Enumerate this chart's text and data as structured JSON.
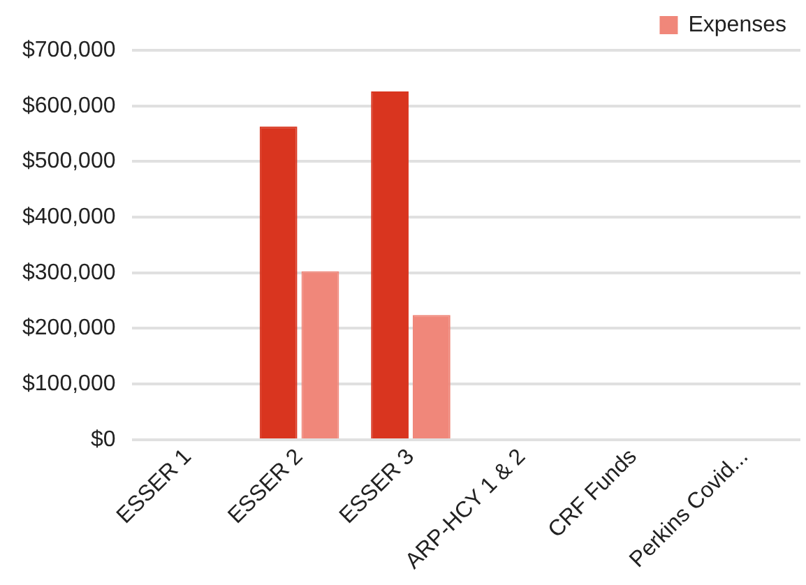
{
  "chart_data": {
    "type": "bar",
    "categories": [
      "ESSER 1",
      "ESSER 2",
      "ESSER 3",
      "ARP-HCY 1 & 2",
      "CRF Funds",
      "Perkins Covid..."
    ],
    "series": [
      {
        "color": "#d9351f",
        "values": [
          0,
          563000,
          626000,
          null,
          0,
          0
        ]
      },
      {
        "name": "Expenses",
        "color": "#f0877a",
        "values": [
          0,
          303000,
          224000,
          0,
          0,
          0
        ]
      }
    ],
    "ylim": [
      0,
      700000
    ],
    "yticks": [
      {
        "value": 0,
        "label": "$0"
      },
      {
        "value": 100000,
        "label": "$100,000"
      },
      {
        "value": 200000,
        "label": "$200,000"
      },
      {
        "value": 300000,
        "label": "$300,000"
      },
      {
        "value": 400000,
        "label": "$400,000"
      },
      {
        "value": 500000,
        "label": "$500,000"
      },
      {
        "value": 600000,
        "label": "$600,000"
      },
      {
        "value": 700000,
        "label": "$700,000"
      }
    ],
    "grid": "y",
    "legend": "top right"
  }
}
